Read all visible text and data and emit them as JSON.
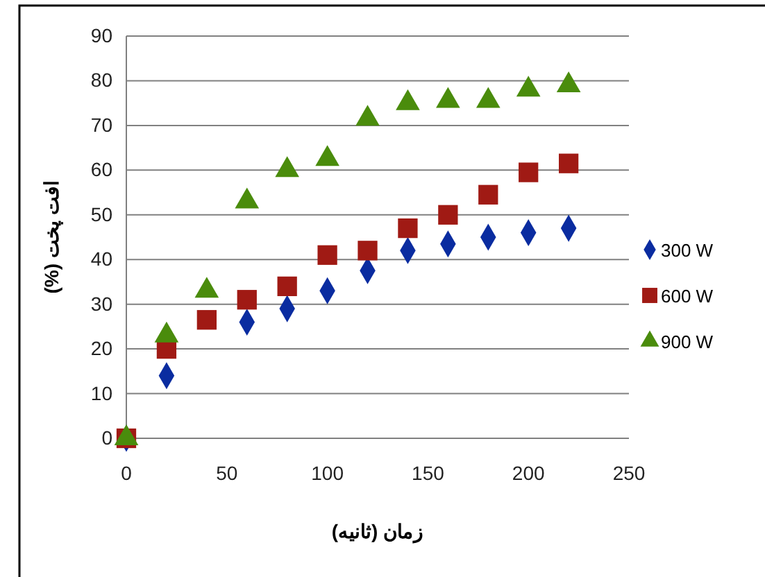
{
  "chart_data": {
    "type": "scatter",
    "xlabel": "زمان (ثانیه)",
    "ylabel": "افت پخت (%)",
    "x": [
      0,
      20,
      40,
      60,
      80,
      100,
      120,
      140,
      160,
      180,
      200,
      220
    ],
    "series": [
      {
        "name": "300 W",
        "color": "#0a2ca0",
        "marker": "diamond",
        "values": [
          0,
          14,
          null,
          26,
          29,
          33,
          37.5,
          42,
          43.5,
          45,
          46,
          47
        ]
      },
      {
        "name": "600 W",
        "color": "#a01a14",
        "marker": "square",
        "values": [
          0,
          20,
          26.5,
          31,
          34,
          41,
          42,
          47,
          50,
          54.5,
          59.5,
          61.5
        ]
      },
      {
        "name": "900 W",
        "color": "#4a8c0c",
        "marker": "triangle",
        "values": [
          0,
          23,
          33,
          53,
          60,
          62.5,
          71.5,
          75,
          75.5,
          75.5,
          78,
          79
        ]
      }
    ],
    "xlim": [
      0,
      250
    ],
    "xticks": [
      0,
      50,
      100,
      150,
      200,
      250
    ],
    "ylim": [
      0,
      90
    ],
    "yticks": [
      0,
      10,
      20,
      30,
      40,
      50,
      60,
      70,
      80,
      90
    ],
    "grid": "y",
    "legend": "right"
  }
}
